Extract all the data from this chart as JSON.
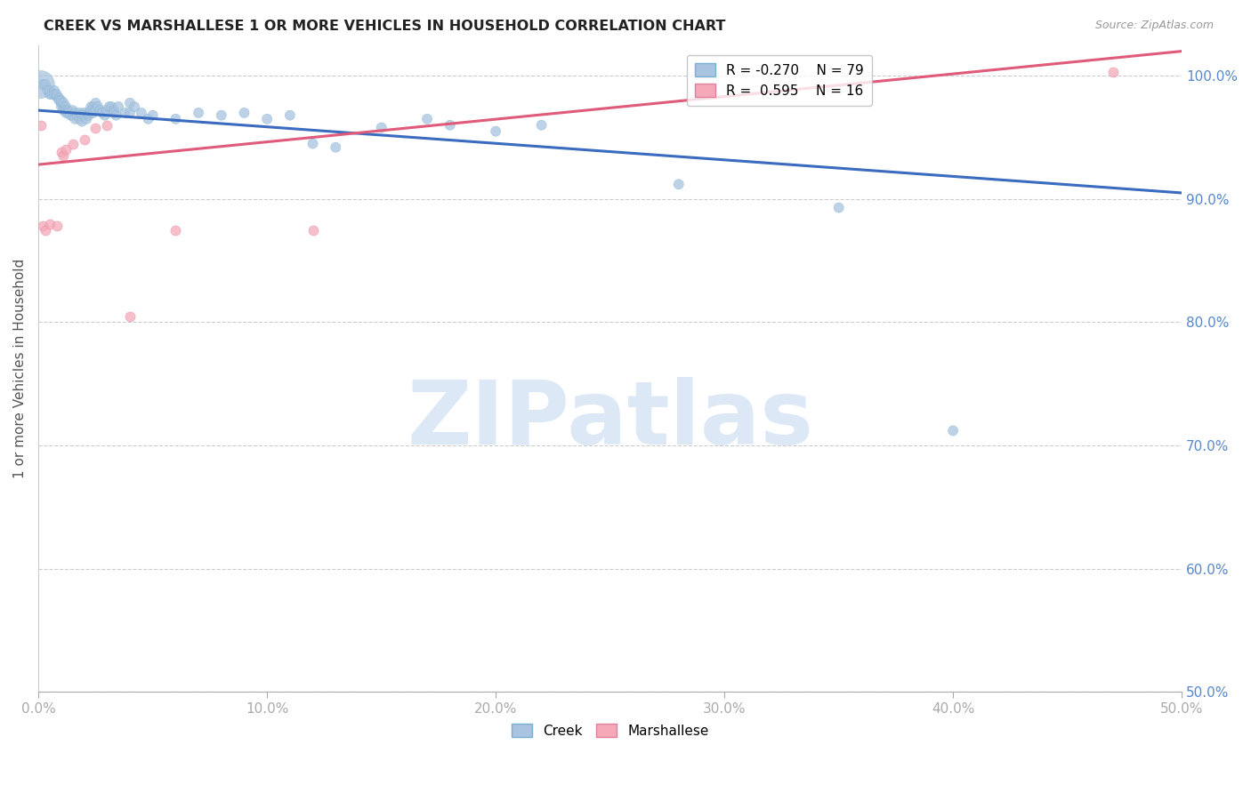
{
  "title": "CREEK VS MARSHALLESE 1 OR MORE VEHICLES IN HOUSEHOLD CORRELATION CHART",
  "source": "Source: ZipAtlas.com",
  "ylabel_label": "1 or more Vehicles in Household",
  "xmin": 0.0,
  "xmax": 0.5,
  "ymin": 0.5,
  "ymax": 1.025,
  "creek_color": "#a8c4e0",
  "creek_edge_color": "#7aafd0",
  "marshallese_color": "#f4a8b8",
  "marshallese_edge_color": "#e080a0",
  "creek_line_color": "#3a6bbf",
  "marshallese_line_color": "#e05a7a",
  "watermark_text": "ZIPatlas",
  "watermark_color": "#dce8f5",
  "grid_color": "#cccccc",
  "tick_color": "#5588cc",
  "legend_r_creek": "R = -0.270",
  "legend_n_creek": "N = 79",
  "legend_r_marsh": "R =  0.595",
  "legend_n_marsh": "N = 16",
  "xtick_positions": [
    0.0,
    0.1,
    0.2,
    0.3,
    0.4,
    0.5
  ],
  "xtick_labels": [
    "0.0%",
    "10.0%",
    "20.0%",
    "30.0%",
    "40.0%",
    "50.0%"
  ],
  "ytick_positions": [
    0.5,
    0.6,
    0.7,
    0.8,
    0.9,
    1.0
  ],
  "ytick_labels": [
    "50.0%",
    "60.0%",
    "70.0%",
    "80.0%",
    "90.0%",
    "100.0%"
  ],
  "creek_line_x": [
    0.0,
    0.5
  ],
  "creek_line_y": [
    0.972,
    0.905
  ],
  "marsh_line_x": [
    0.0,
    0.5
  ],
  "marsh_line_y": [
    0.928,
    1.02
  ],
  "creek_points": [
    [
      0.001,
      0.993
    ],
    [
      0.002,
      0.993
    ],
    [
      0.003,
      0.993
    ],
    [
      0.004,
      0.988
    ],
    [
      0.005,
      0.985
    ],
    [
      0.005,
      0.988
    ],
    [
      0.006,
      0.985
    ],
    [
      0.007,
      0.988
    ],
    [
      0.007,
      0.985
    ],
    [
      0.008,
      0.983
    ],
    [
      0.008,
      0.985
    ],
    [
      0.009,
      0.982
    ],
    [
      0.009,
      0.98
    ],
    [
      0.01,
      0.975
    ],
    [
      0.01,
      0.978
    ],
    [
      0.01,
      0.98
    ],
    [
      0.011,
      0.975
    ],
    [
      0.011,
      0.978
    ],
    [
      0.011,
      0.972
    ],
    [
      0.012,
      0.975
    ],
    [
      0.012,
      0.972
    ],
    [
      0.012,
      0.97
    ],
    [
      0.013,
      0.972
    ],
    [
      0.013,
      0.97
    ],
    [
      0.014,
      0.968
    ],
    [
      0.015,
      0.972
    ],
    [
      0.015,
      0.968
    ],
    [
      0.016,
      0.97
    ],
    [
      0.016,
      0.965
    ],
    [
      0.017,
      0.968
    ],
    [
      0.018,
      0.97
    ],
    [
      0.018,
      0.965
    ],
    [
      0.019,
      0.968
    ],
    [
      0.019,
      0.963
    ],
    [
      0.02,
      0.97
    ],
    [
      0.02,
      0.968
    ],
    [
      0.021,
      0.965
    ],
    [
      0.022,
      0.97
    ],
    [
      0.022,
      0.968
    ],
    [
      0.023,
      0.975
    ],
    [
      0.023,
      0.972
    ],
    [
      0.024,
      0.975
    ],
    [
      0.024,
      0.97
    ],
    [
      0.025,
      0.978
    ],
    [
      0.025,
      0.972
    ],
    [
      0.026,
      0.975
    ],
    [
      0.027,
      0.972
    ],
    [
      0.028,
      0.97
    ],
    [
      0.029,
      0.968
    ],
    [
      0.03,
      0.972
    ],
    [
      0.031,
      0.975
    ],
    [
      0.032,
      0.975
    ],
    [
      0.033,
      0.972
    ],
    [
      0.033,
      0.97
    ],
    [
      0.034,
      0.968
    ],
    [
      0.035,
      0.975
    ],
    [
      0.038,
      0.97
    ],
    [
      0.04,
      0.978
    ],
    [
      0.04,
      0.97
    ],
    [
      0.042,
      0.975
    ],
    [
      0.045,
      0.97
    ],
    [
      0.048,
      0.965
    ],
    [
      0.05,
      0.968
    ],
    [
      0.06,
      0.965
    ],
    [
      0.07,
      0.97
    ],
    [
      0.08,
      0.968
    ],
    [
      0.09,
      0.97
    ],
    [
      0.1,
      0.965
    ],
    [
      0.11,
      0.968
    ],
    [
      0.12,
      0.945
    ],
    [
      0.13,
      0.942
    ],
    [
      0.15,
      0.958
    ],
    [
      0.17,
      0.965
    ],
    [
      0.18,
      0.96
    ],
    [
      0.2,
      0.955
    ],
    [
      0.22,
      0.96
    ],
    [
      0.28,
      0.912
    ],
    [
      0.35,
      0.893
    ],
    [
      0.4,
      0.712
    ]
  ],
  "creek_large_indices": [
    0
  ],
  "marshallese_points": [
    [
      0.001,
      0.96
    ],
    [
      0.002,
      0.878
    ],
    [
      0.003,
      0.875
    ],
    [
      0.005,
      0.88
    ],
    [
      0.008,
      0.878
    ],
    [
      0.01,
      0.938
    ],
    [
      0.011,
      0.935
    ],
    [
      0.012,
      0.94
    ],
    [
      0.015,
      0.945
    ],
    [
      0.02,
      0.948
    ],
    [
      0.025,
      0.958
    ],
    [
      0.03,
      0.96
    ],
    [
      0.04,
      0.805
    ],
    [
      0.06,
      0.875
    ],
    [
      0.12,
      0.875
    ],
    [
      0.47,
      1.003
    ]
  ]
}
